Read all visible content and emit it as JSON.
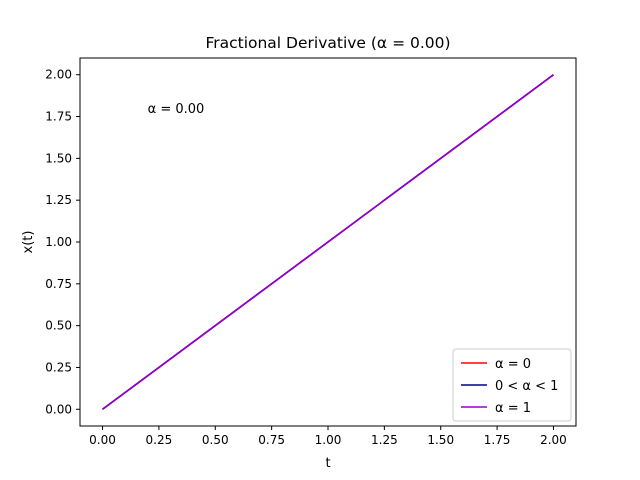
{
  "chart_data": {
    "type": "line",
    "title": "Fractional Derivative (α = 0.00)",
    "xlabel": "t",
    "ylabel": "x(t)",
    "xlim": [
      -0.1,
      2.1
    ],
    "ylim": [
      -0.1,
      2.1
    ],
    "x_ticks": [
      "0.00",
      "0.25",
      "0.50",
      "0.75",
      "1.00",
      "1.25",
      "1.50",
      "1.75",
      "2.00"
    ],
    "y_ticks": [
      "0.00",
      "0.25",
      "0.50",
      "0.75",
      "1.00",
      "1.25",
      "1.50",
      "1.75",
      "2.00"
    ],
    "grid": false,
    "legend_position": "lower-right",
    "annotation": {
      "text": "α = 0.00",
      "x": 0.2,
      "y": 1.8
    },
    "series": [
      {
        "name": "α = 0",
        "color": "#ff0000",
        "x": [
          0,
          2
        ],
        "y": [
          0,
          2
        ]
      },
      {
        "name": "0 < α < 1",
        "color": "#00008b",
        "x": [
          0,
          2
        ],
        "y": [
          0,
          2
        ]
      },
      {
        "name": "α = 1",
        "color": "#9400d3",
        "x": [
          0,
          2
        ],
        "y": [
          0,
          2
        ]
      }
    ]
  }
}
